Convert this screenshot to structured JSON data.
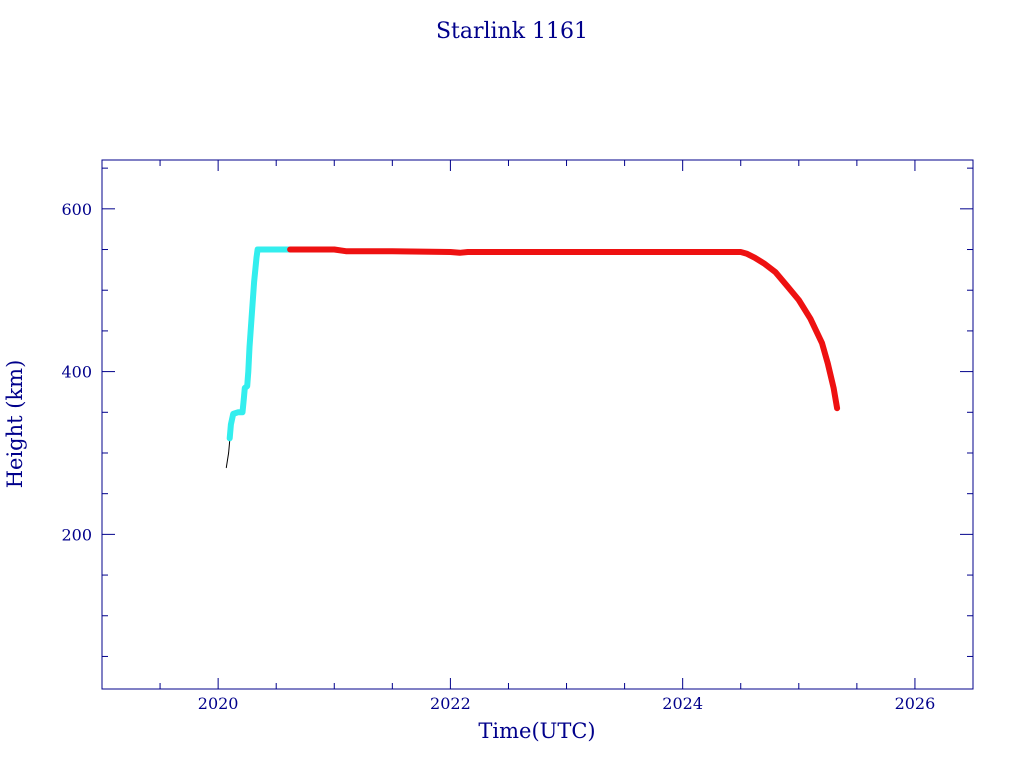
{
  "chart_data": {
    "type": "line",
    "title": "Starlink 1161",
    "xlabel": "Time(UTC)",
    "ylabel": "Height (km)",
    "xlim": [
      2019.0,
      2026.5
    ],
    "ylim": [
      10,
      660
    ],
    "x_ticks": [
      2020,
      2022,
      2024,
      2026
    ],
    "y_ticks": [
      200,
      400,
      600
    ],
    "grid": false,
    "axis_color": "#00008b",
    "series": [
      {
        "color": "#000000",
        "points": [
          [
            2020.07,
            282
          ],
          [
            2020.09,
            300
          ],
          [
            2020.1,
            315
          ]
        ]
      },
      {
        "color": "#33eeee",
        "points": [
          [
            2020.1,
            318
          ],
          [
            2020.11,
            335
          ],
          [
            2020.13,
            348
          ],
          [
            2020.17,
            350
          ],
          [
            2020.21,
            350
          ],
          [
            2020.22,
            365
          ],
          [
            2020.23,
            380
          ],
          [
            2020.25,
            382
          ],
          [
            2020.26,
            400
          ],
          [
            2020.27,
            430
          ],
          [
            2020.29,
            470
          ],
          [
            2020.31,
            510
          ],
          [
            2020.33,
            540
          ],
          [
            2020.34,
            550
          ],
          [
            2020.4,
            550
          ],
          [
            2020.5,
            550
          ],
          [
            2020.62,
            550
          ]
        ]
      },
      {
        "color": "#ee1111",
        "points": [
          [
            2020.62,
            550
          ],
          [
            2020.8,
            550
          ],
          [
            2021.0,
            550
          ],
          [
            2021.1,
            548
          ],
          [
            2021.5,
            548
          ],
          [
            2022.0,
            547
          ],
          [
            2022.08,
            546
          ],
          [
            2022.15,
            547
          ],
          [
            2023.0,
            547
          ],
          [
            2024.0,
            547
          ],
          [
            2024.5,
            547
          ],
          [
            2024.55,
            545
          ],
          [
            2024.62,
            540
          ],
          [
            2024.7,
            533
          ],
          [
            2024.8,
            522
          ],
          [
            2024.9,
            505
          ],
          [
            2025.0,
            488
          ],
          [
            2025.1,
            465
          ],
          [
            2025.2,
            435
          ],
          [
            2025.25,
            410
          ],
          [
            2025.3,
            380
          ],
          [
            2025.33,
            355
          ]
        ]
      }
    ]
  }
}
